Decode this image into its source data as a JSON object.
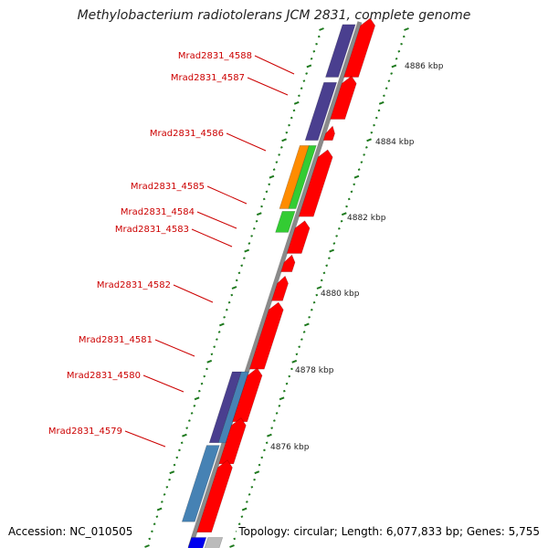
{
  "title": "Methylobacterium radiotolerans JCM 2831, complete genome",
  "accession_label": "Accession: NC_010505",
  "topology_label": "Topology: circular; Length: 6,077,833 bp; Genes: 5,755",
  "colors": {
    "backbone": "#8a8a8a",
    "tick": "#1f7a1f",
    "gene_label": "#cc0000",
    "red_gene": "#ff0000",
    "purple_gene": "#4a3f8f",
    "steel_gene": "#4682b4",
    "green_gene": "#33cc33",
    "orange_gene": "#ff8c00",
    "blue_gene": "#0000ee",
    "gray_gene": "#bbbbbb"
  },
  "kbp_markers": [
    {
      "label": "4876 kbp"
    },
    {
      "label": "4878 kbp"
    },
    {
      "label": "4880 kbp"
    },
    {
      "label": "4882 kbp"
    },
    {
      "label": "4884 kbp"
    },
    {
      "label": "4886 kbp"
    }
  ],
  "gene_labels": [
    {
      "label": "Mrad2831_4588"
    },
    {
      "label": "Mrad2831_4587"
    },
    {
      "label": "Mrad2831_4586"
    },
    {
      "label": "Mrad2831_4585"
    },
    {
      "label": "Mrad2831_4584"
    },
    {
      "label": "Mrad2831_4583"
    },
    {
      "label": "Mrad2831_4582"
    },
    {
      "label": "Mrad2831_4581"
    },
    {
      "label": "Mrad2831_4580"
    },
    {
      "label": "Mrad2831_4579"
    }
  ]
}
